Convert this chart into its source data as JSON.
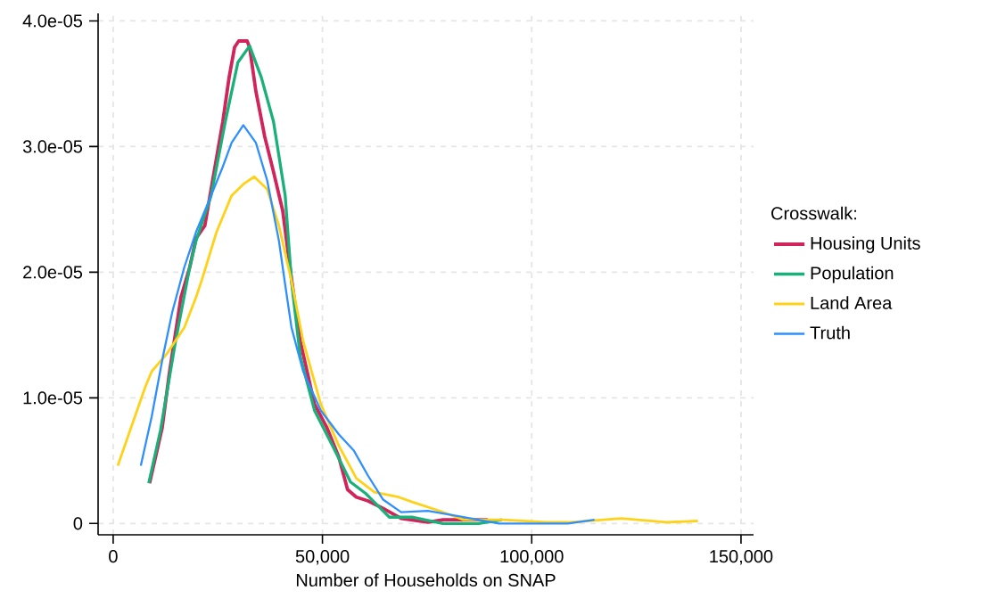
{
  "chart_data": {
    "type": "line",
    "xlabel": "Number of Households on SNAP",
    "legend_title": "Crosswalk:",
    "legend": "right",
    "grid": true,
    "line_style": "solid",
    "marker": "none",
    "xlim": [
      -3600,
      153000
    ],
    "ylim": [
      -9e-07,
      4.06e-05
    ],
    "xticks": [
      0,
      {
        "value": 50000,
        "label": "50,000"
      },
      {
        "value": 100000,
        "label": "100,000"
      },
      {
        "value": 150000,
        "label": "150,000"
      }
    ],
    "yticks": [
      0,
      {
        "value": 1e-05,
        "label": "1.0e-05"
      },
      {
        "value": 2e-05,
        "label": "2.0e-05"
      },
      {
        "value": 3e-05,
        "label": "3.0e-05"
      },
      {
        "value": 4e-05,
        "label": "4.0e-05"
      }
    ],
    "series": [
      {
        "name": "Housing Units",
        "color": "#d0245a",
        "x": [
          8700,
          11700,
          13400,
          16200,
          18300,
          19800,
          21900,
          23600,
          26200,
          27700,
          29000,
          30000,
          32000,
          32600,
          34100,
          36200,
          38300,
          40500,
          42600,
          44700,
          48100,
          51100,
          53900,
          56000,
          58100,
          60900,
          64500,
          68800,
          75200,
          78800,
          89500
        ],
        "values": [
          3.2e-06,
          7.6e-06,
          1.19e-05,
          1.8e-05,
          2.04e-05,
          2.27e-05,
          2.37e-05,
          2.7e-05,
          3.2e-05,
          3.55e-05,
          3.79e-05,
          3.84e-05,
          3.84e-05,
          3.79e-05,
          3.44e-05,
          3.08e-05,
          2.8e-05,
          2.49e-05,
          1.95e-05,
          1.45e-05,
          9.5e-06,
          7.6e-06,
          5.3e-06,
          2.7e-06,
          2.1e-06,
          1.8e-06,
          1.2e-06,
          4e-07,
          1e-07,
          3e-07,
          3e-07
        ]
      },
      {
        "name": "Population",
        "color": "#1ab07a",
        "x": [
          8500,
          11300,
          14900,
          18300,
          19800,
          23400,
          26800,
          29800,
          32600,
          35400,
          38300,
          41100,
          42600,
          44700,
          48100,
          52400,
          56700,
          60300,
          62400,
          66000,
          71600,
          78800,
          87300,
          92900
        ],
        "values": [
          3.2e-06,
          7.4e-06,
          1.45e-05,
          2.04e-05,
          2.25e-05,
          2.61e-05,
          3.2e-05,
          3.67e-05,
          3.8e-05,
          3.55e-05,
          3.2e-05,
          2.61e-05,
          1.93e-05,
          1.33e-05,
          9e-06,
          6.2e-06,
          3.3e-06,
          2.4e-06,
          1.7e-06,
          5e-07,
          5e-07,
          0,
          0,
          3e-07
        ]
      },
      {
        "name": "Land Area",
        "color": "#ffd21a",
        "x": [
          1100,
          7700,
          9200,
          12800,
          17000,
          19800,
          21300,
          24700,
          28300,
          31100,
          33700,
          36800,
          39600,
          42600,
          45400,
          49600,
          53900,
          58100,
          62400,
          68200,
          71600,
          78000,
          83700,
          92900,
          103500,
          109300,
          121400,
          132100,
          139700
        ],
        "values": [
          4.6e-06,
          1.09e-05,
          1.21e-05,
          1.35e-05,
          1.56e-05,
          1.8e-05,
          1.95e-05,
          2.32e-05,
          2.61e-05,
          2.7e-05,
          2.76e-05,
          2.66e-05,
          2.37e-05,
          1.93e-05,
          1.45e-05,
          9.5e-06,
          6.2e-06,
          3.6e-06,
          2.5e-06,
          2.1e-06,
          1.7e-06,
          1e-06,
          3e-07,
          3e-07,
          1e-07,
          1e-07,
          4e-07,
          1e-07,
          2e-07
        ]
      },
      {
        "name": "Truth",
        "color": "#2f8fff",
        "x": [
          6600,
          9200,
          11900,
          14100,
          17000,
          19800,
          23400,
          26200,
          28300,
          31100,
          34100,
          36800,
          39600,
          41100,
          42600,
          45400,
          49600,
          53900,
          57500,
          60900,
          64500,
          68800,
          75200,
          82200,
          92200,
          108600,
          115000
        ],
        "values": [
          4.6e-06,
          8.5e-06,
          1.33e-05,
          1.68e-05,
          2.04e-05,
          2.32e-05,
          2.61e-05,
          2.84e-05,
          3.03e-05,
          3.17e-05,
          3.03e-05,
          2.73e-05,
          2.25e-05,
          1.9e-05,
          1.56e-05,
          1.21e-05,
          9e-06,
          7.1e-06,
          5.8e-06,
          3.8e-06,
          1.9e-06,
          9e-07,
          1e-06,
          6e-07,
          0,
          0,
          3e-07
        ]
      }
    ]
  }
}
